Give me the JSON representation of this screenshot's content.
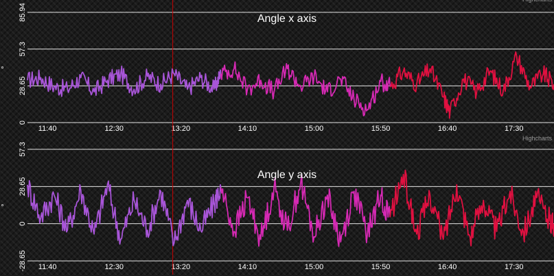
{
  "colors": {
    "gridline": "#e6e6e6",
    "marker_line": "#cc0000",
    "tick_text": "#ffffff",
    "credit_text": "#999999",
    "segment_colors": [
      "#a855d8",
      "#d629b4",
      "#e01040"
    ]
  },
  "credits": "Highcharts",
  "x_ticks": [
    "11:40",
    "12:30",
    "13:20",
    "14:10",
    "15:00",
    "15:50",
    "16:40",
    "17:30"
  ],
  "marker_time": "13:14",
  "chart_data": [
    {
      "type": "line",
      "title": "Angle x axis",
      "ylabel": "°",
      "y_ticks": [
        "0",
        "28.65",
        "57.3",
        "85.94"
      ],
      "ylim": [
        0,
        85.94
      ],
      "xlim": [
        "11:25",
        "18:00"
      ],
      "segments": [
        {
          "name": "",
          "color_index": 0,
          "x": [
            "11:25",
            "11:35",
            "11:45",
            "11:55",
            "12:05",
            "12:15",
            "12:25",
            "12:35",
            "12:45",
            "12:55",
            "13:05",
            "13:15",
            "13:25",
            "13:35",
            "13:45",
            "13:50"
          ],
          "values": [
            33,
            35,
            28,
            26,
            35,
            24,
            33,
            38,
            26,
            36,
            30,
            38,
            26,
            35,
            26,
            38
          ]
        },
        {
          "name": "",
          "color_index": 1,
          "x": [
            "13:50",
            "14:00",
            "14:10",
            "14:20",
            "14:30",
            "14:40",
            "14:50",
            "15:00",
            "15:10",
            "15:20",
            "15:30",
            "15:40",
            "15:50",
            "15:57"
          ],
          "values": [
            38,
            42,
            26,
            33,
            24,
            42,
            28,
            36,
            24,
            34,
            18,
            10,
            32,
            28
          ]
        },
        {
          "name": "",
          "color_index": 2,
          "x": [
            "15:57",
            "16:07",
            "16:17",
            "16:27",
            "16:37",
            "16:42",
            "16:52",
            "17:02",
            "17:12",
            "17:22",
            "17:32",
            "17:42",
            "17:52",
            "18:00"
          ],
          "values": [
            28,
            40,
            30,
            42,
            20,
            8,
            34,
            24,
            40,
            25,
            52,
            28,
            38,
            30
          ]
        }
      ]
    },
    {
      "type": "line",
      "title": "Angle y axis",
      "ylabel": "°",
      "y_ticks": [
        "-28.65",
        "0",
        "28.65",
        "57.3"
      ],
      "ylim": [
        -28.65,
        57.3
      ],
      "xlim": [
        "11:25",
        "18:00"
      ],
      "segments": [
        {
          "name": "",
          "color_index": 0,
          "x": [
            "11:25",
            "11:35",
            "11:45",
            "11:55",
            "12:05",
            "12:15",
            "12:25",
            "12:35",
            "12:45",
            "12:55",
            "13:05",
            "13:15",
            "13:25",
            "13:35",
            "13:45",
            "13:50"
          ],
          "values": [
            30,
            5,
            22,
            -5,
            26,
            -8,
            30,
            -12,
            18,
            -5,
            25,
            -15,
            18,
            -5,
            15,
            28
          ]
        },
        {
          "name": "",
          "color_index": 1,
          "x": [
            "13:50",
            "14:00",
            "14:10",
            "14:20",
            "14:30",
            "14:40",
            "14:50",
            "15:00",
            "15:10",
            "15:20",
            "15:30",
            "15:40",
            "15:50",
            "15:57"
          ],
          "values": [
            28,
            -6,
            20,
            -12,
            28,
            -5,
            32,
            -10,
            22,
            -14,
            25,
            -8,
            22,
            5
          ]
        },
        {
          "name": "",
          "color_index": 2,
          "x": [
            "15:57",
            "16:07",
            "16:17",
            "16:27",
            "16:37",
            "16:47",
            "16:57",
            "17:07",
            "17:17",
            "17:27",
            "17:37",
            "17:47",
            "17:57",
            "18:00"
          ],
          "values": [
            5,
            38,
            -8,
            22,
            -12,
            30,
            -10,
            18,
            -6,
            25,
            -6,
            20,
            2,
            0
          ]
        }
      ]
    }
  ]
}
